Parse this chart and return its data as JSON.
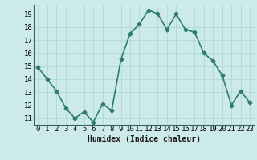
{
  "x": [
    0,
    1,
    2,
    3,
    4,
    5,
    6,
    7,
    8,
    9,
    10,
    11,
    12,
    13,
    14,
    15,
    16,
    17,
    18,
    19,
    20,
    21,
    22,
    23
  ],
  "y": [
    14.9,
    14.0,
    13.1,
    11.8,
    11.0,
    11.5,
    10.7,
    12.1,
    11.6,
    15.5,
    17.5,
    18.2,
    19.3,
    19.0,
    17.8,
    19.0,
    17.8,
    17.6,
    16.0,
    15.4,
    14.3,
    12.0,
    13.1,
    12.2
  ],
  "line_color": "#2d7d6e",
  "marker": "D",
  "marker_size": 2.5,
  "bg_color": "#cdeaea",
  "grid_color": "#b0d8d8",
  "xlabel": "Humidex (Indice chaleur)",
  "ylim": [
    10.5,
    19.7
  ],
  "xlim": [
    -0.5,
    23.5
  ],
  "yticks": [
    11,
    12,
    13,
    14,
    15,
    16,
    17,
    18,
    19
  ],
  "xticks": [
    0,
    1,
    2,
    3,
    4,
    5,
    6,
    7,
    8,
    9,
    10,
    11,
    12,
    13,
    14,
    15,
    16,
    17,
    18,
    19,
    20,
    21,
    22,
    23
  ],
  "xlabel_fontsize": 7,
  "tick_fontsize": 6.5,
  "line_width": 1.2
}
